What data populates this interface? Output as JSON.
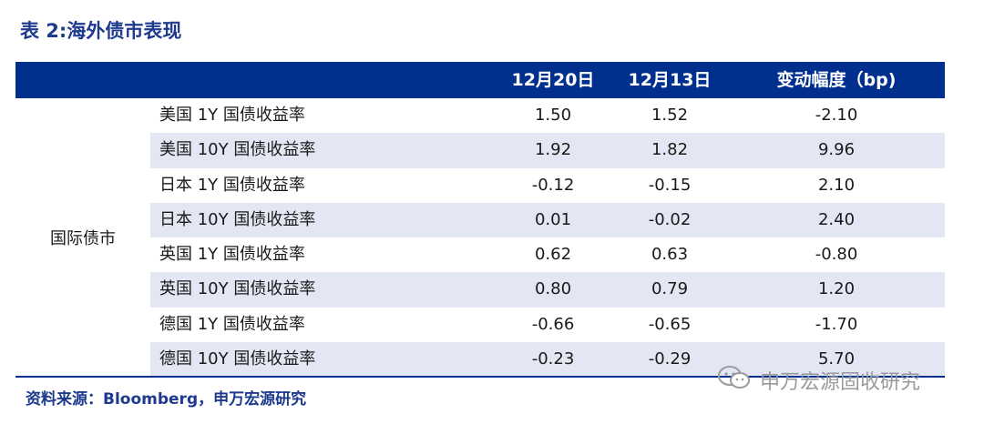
{
  "title": "表 2:海外债市表现",
  "header": {
    "col_date1": "12月20日",
    "col_date2": "12月13日",
    "col_change": "变动幅度（bp)"
  },
  "group_label": "国际债市",
  "rows": [
    {
      "name": "美国 1Y 国债收益率",
      "v1": "1.50",
      "v2": "1.52",
      "v3": "-2.10"
    },
    {
      "name": "美国 10Y 国债收益率",
      "v1": "1.92",
      "v2": "1.82",
      "v3": "9.96"
    },
    {
      "name": "日本 1Y 国债收益率",
      "v1": "-0.12",
      "v2": "-0.15",
      "v3": "2.10"
    },
    {
      "name": "日本 10Y 国债收益率",
      "v1": "0.01",
      "v2": "-0.02",
      "v3": "2.40"
    },
    {
      "name": "英国 1Y 国债收益率",
      "v1": "0.62",
      "v2": "0.63",
      "v3": "-0.80"
    },
    {
      "name": "英国 10Y 国债收益率",
      "v1": "0.80",
      "v2": "0.79",
      "v3": "1.20"
    },
    {
      "name": "德国 1Y 国债收益率",
      "v1": "-0.66",
      "v2": "-0.65",
      "v3": "-1.70"
    },
    {
      "name": "德国 10Y 国债收益率",
      "v1": "-0.23",
      "v2": "-0.29",
      "v3": "5.70"
    }
  ],
  "source": "资料来源：Bloomberg，申万宏源研究",
  "watermark": {
    "text": "申万宏源固收研究",
    "icon": "wechat-icon"
  },
  "colors": {
    "header_bg": "#002f8e",
    "row_shade": "#e3e7f4",
    "title": "#1d3a8f"
  }
}
